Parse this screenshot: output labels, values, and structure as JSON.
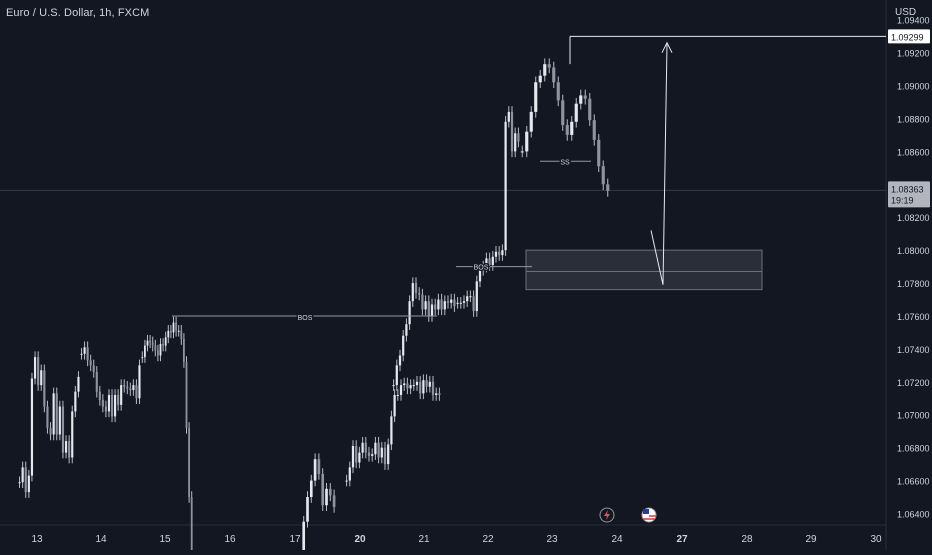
{
  "header": {
    "symbol_title": "Euro / U.S. Dollar, 1h, FXCM",
    "currency": "USD"
  },
  "colors": {
    "background": "#131722",
    "candle": "#e6e8ee",
    "wick": "#b8bcc6",
    "axis_text": "#d1d4dc",
    "annotation": "#9598a1",
    "zone_fill": "#2a2e39",
    "label_bg": "#ffffff",
    "label_text": "#131722"
  },
  "chart_data": {
    "type": "candlestick",
    "x_axis_labels": [
      "13",
      "14",
      "15",
      "16",
      "17",
      "20",
      "21",
      "22",
      "23",
      "24",
      "27",
      "28",
      "29",
      "30"
    ],
    "y_axis_ticks": [
      "1.09400",
      "1.09200",
      "1.09000",
      "1.08800",
      "1.08600",
      "1.08400",
      "1.08200",
      "1.08000",
      "1.07800",
      "1.07600",
      "1.07400",
      "1.07200",
      "1.07000",
      "1.06800",
      "1.06600",
      "1.06400"
    ],
    "ylim": [
      1.0633,
      1.0952
    ],
    "price_labels": {
      "target": "1.09299",
      "current": "1.08363",
      "countdown": "19:19"
    },
    "annotations": {
      "bos_1": "BOS",
      "bos_2": "BOS",
      "ss": "SS",
      "target_level": 1.09299,
      "zone_top": 1.08,
      "zone_mid": 1.0787,
      "zone_bottom": 1.0776
    },
    "bottom_icons": [
      "lightning-event-icon",
      "us-flag-event-icon"
    ],
    "series": [
      {
        "day": "13",
        "points": [
          1.0659,
          1.0668,
          1.0653,
          1.0663,
          1.0722,
          1.0735,
          1.0718,
          1.0727,
          1.0705,
          1.0692,
          1.0688,
          1.0713,
          1.0688,
          1.0705,
          1.0677,
          1.0684,
          1.0674,
          1.0702,
          1.0714,
          1.0723
        ]
      },
      {
        "day": "14",
        "points": [
          1.0737,
          1.0741,
          1.0733,
          1.073,
          1.0726,
          1.0714,
          1.0709,
          1.0705,
          1.0702,
          1.0712,
          1.0699,
          1.0712,
          1.0706,
          1.0718,
          1.0717,
          1.0716,
          1.0715,
          1.0718,
          1.071,
          1.073
        ]
      },
      {
        "day": "15",
        "points": [
          1.0735,
          1.0742,
          1.0745,
          1.0744,
          1.0742,
          1.0739,
          1.0736,
          1.0743,
          1.0742,
          1.0747,
          1.0751,
          1.075,
          1.0756,
          1.0751,
          1.0751,
          1.0746,
          1.0732,
          1.0692,
          1.065,
          1.06
        ]
      },
      {
        "day": "17",
        "points": [
          1.0611,
          1.0635,
          1.065,
          1.066,
          1.0673,
          1.0664,
          1.0645,
          1.0655,
          1.0651,
          1.0644
        ]
      },
      {
        "day": "20",
        "points": [
          1.066,
          1.0668,
          1.0681,
          1.0671,
          1.0677,
          1.0683,
          1.0677,
          1.0675,
          1.0676,
          1.0683,
          1.0674,
          1.068,
          1.067,
          1.0682,
          1.0699,
          1.0712,
          1.0712,
          1.0718,
          1.0719,
          1.0716,
          1.0718,
          1.0718,
          1.072,
          1.0713,
          1.0721,
          1.0717,
          1.072,
          1.0712,
          1.0713,
          1.0712
        ]
      },
      {
        "day": "21",
        "points": [
          1.0718,
          1.073,
          1.0736,
          1.0748,
          1.0755,
          1.0769,
          1.078,
          1.0774,
          1.0773,
          1.0764,
          1.0769,
          1.076,
          1.0767,
          1.0764,
          1.077,
          1.0764,
          1.0769,
          1.0768,
          1.077,
          1.0766
        ]
      },
      {
        "day": "22",
        "points": [
          1.0768,
          1.0768,
          1.0769,
          1.0772,
          1.0772,
          1.0763,
          1.0781,
          1.0788,
          1.079,
          1.0795,
          1.0791,
          1.0796,
          1.0799,
          1.0797,
          1.08,
          1.0878,
          1.0884,
          1.086,
          1.0871,
          1.0866
        ]
      },
      {
        "day": "23",
        "points": [
          1.086,
          1.0872,
          1.0884,
          1.0902,
          1.0906,
          1.0913,
          1.0911,
          1.0902,
          1.0891,
          1.0876,
          1.087,
          1.0878,
          1.0889,
          1.0894,
          1.0892,
          1.0879,
          1.0867,
          1.0851,
          1.084,
          1.0836
        ]
      }
    ]
  }
}
